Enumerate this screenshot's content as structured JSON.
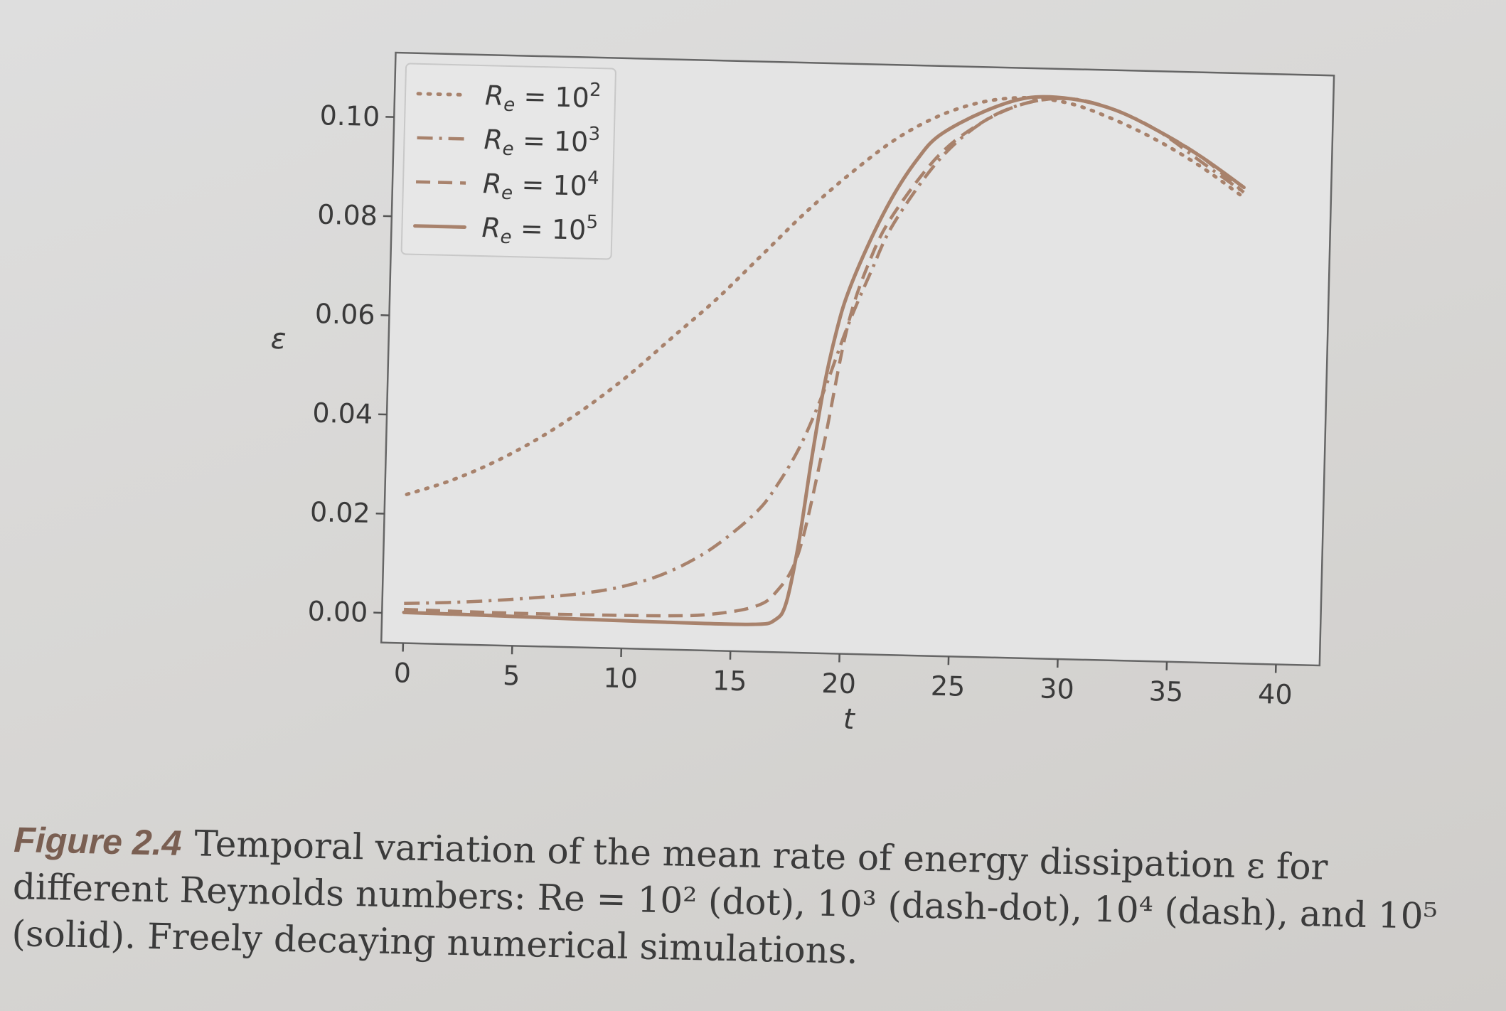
{
  "chart_data": {
    "type": "line",
    "xlabel": "t",
    "ylabel": "ε",
    "xlim": [
      -1,
      42
    ],
    "ylim": [
      -0.006,
      0.113
    ],
    "xticks": [
      "0",
      "5",
      "10",
      "15",
      "20",
      "25",
      "30",
      "35",
      "40"
    ],
    "yticks": [
      "0.00",
      "0.02",
      "0.04",
      "0.06",
      "0.08",
      "0.10"
    ],
    "legend_position": "top-left",
    "grid": false,
    "series": [
      {
        "name": "Re = 10²",
        "legend_base": "R",
        "legend_sub": "e",
        "legend_eq": " = 10",
        "legend_sup": "2",
        "style": "dot",
        "x": [
          0,
          2,
          4,
          6,
          8,
          10,
          12,
          14,
          16,
          18,
          20,
          22,
          24,
          26,
          28,
          30,
          32,
          34,
          36,
          38
        ],
        "y": [
          0.024,
          0.027,
          0.031,
          0.036,
          0.042,
          0.049,
          0.057,
          0.065,
          0.074,
          0.083,
          0.091,
          0.098,
          0.103,
          0.106,
          0.107,
          0.106,
          0.103,
          0.099,
          0.094,
          0.088
        ]
      },
      {
        "name": "Re = 10³",
        "legend_base": "R",
        "legend_sub": "e",
        "legend_eq": " = 10",
        "legend_sup": "3",
        "style": "dashdot",
        "x": [
          0,
          2,
          4,
          6,
          8,
          10,
          12,
          14,
          16,
          17,
          18,
          19,
          20,
          21,
          22,
          24,
          26,
          28,
          30,
          32,
          34,
          36,
          38
        ],
        "y": [
          0.002,
          0.0024,
          0.003,
          0.0038,
          0.0048,
          0.0065,
          0.0095,
          0.0145,
          0.022,
          0.028,
          0.036,
          0.047,
          0.06,
          0.071,
          0.081,
          0.094,
          0.102,
          0.106,
          0.107,
          0.105,
          0.101,
          0.095,
          0.089
        ]
      },
      {
        "name": "Re = 10⁴",
        "legend_base": "R",
        "legend_sub": "e",
        "legend_eq": " = 10",
        "legend_sup": "4",
        "style": "dash",
        "x": [
          0,
          4,
          8,
          12,
          14,
          16,
          17,
          18,
          19,
          20,
          21,
          22,
          24,
          26,
          28,
          30,
          32,
          34,
          36,
          38
        ],
        "y": [
          0.0008,
          0.0006,
          0.0006,
          0.0008,
          0.0013,
          0.003,
          0.006,
          0.014,
          0.035,
          0.06,
          0.074,
          0.083,
          0.095,
          0.102,
          0.106,
          0.107,
          0.105,
          0.101,
          0.096,
          0.089
        ]
      },
      {
        "name": "Re = 10⁵",
        "legend_base": "R",
        "legend_sub": "e",
        "legend_eq": " = 10",
        "legend_sup": "5",
        "style": "solid",
        "x": [
          0,
          4,
          8,
          12,
          16,
          17,
          17.5,
          18,
          18.5,
          19,
          19.5,
          20,
          21,
          22,
          23,
          24,
          26,
          28,
          30,
          32,
          34,
          36,
          38
        ],
        "y": [
          0.0002,
          0.0,
          -0.0003,
          -0.0005,
          -0.0005,
          0.0005,
          0.004,
          0.016,
          0.033,
          0.048,
          0.059,
          0.067,
          0.078,
          0.087,
          0.094,
          0.099,
          0.104,
          0.107,
          0.107,
          0.105,
          0.101,
          0.096,
          0.09
        ]
      }
    ]
  },
  "caption": {
    "label": "Figure 2.4",
    "text": "Temporal variation of the mean rate of energy dissipation ε for different Reynolds numbers: Re = 10² (dot), 10³ (dash-dot), 10⁴ (dash), and 10⁵ (solid). Freely decaying numerical simulations."
  },
  "colors": {
    "line": "#a8826c",
    "axis": "#555555",
    "text": "#3a3a3a"
  }
}
